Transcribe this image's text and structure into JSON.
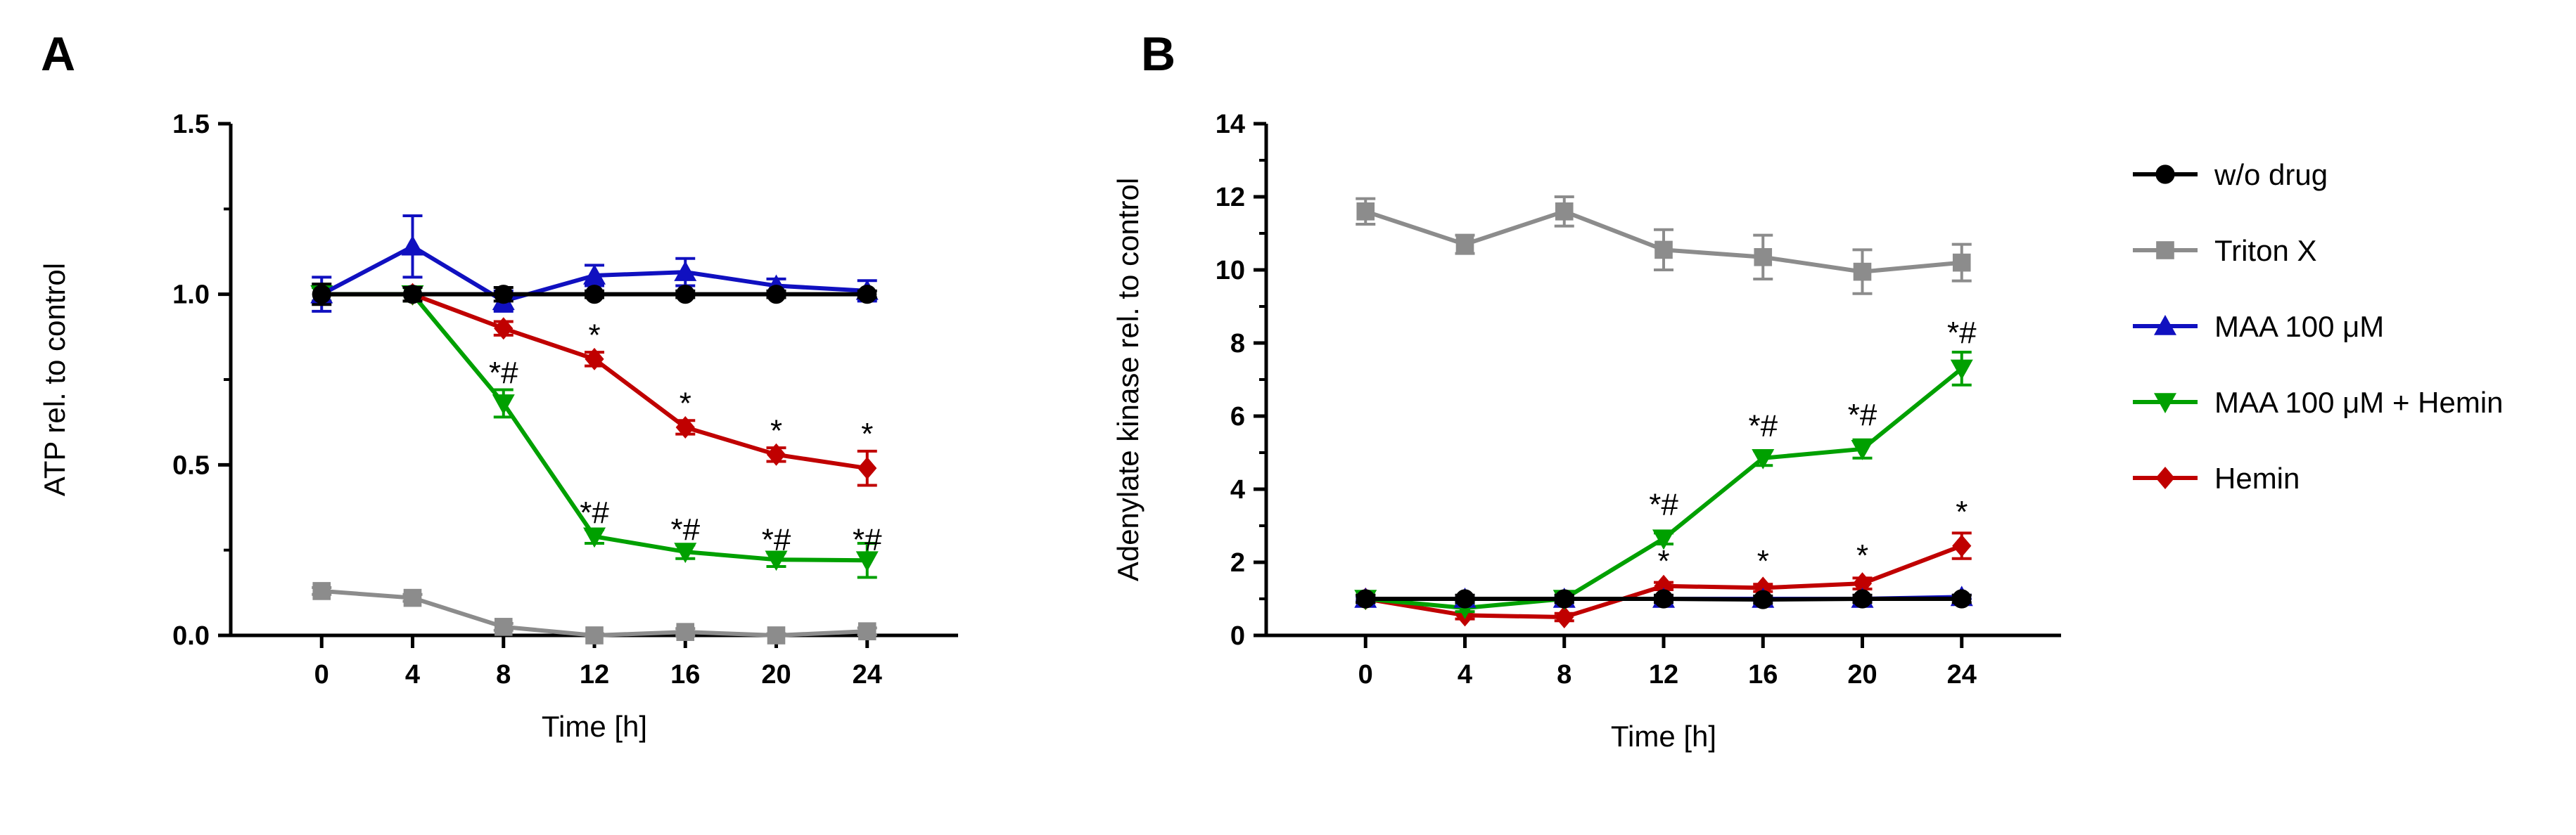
{
  "chart_data": [
    {
      "panel": "A",
      "type": "line",
      "title": "",
      "xlabel": "Time [h]",
      "ylabel": "ATP rel. to control",
      "x": [
        0,
        4,
        8,
        12,
        16,
        20,
        24
      ],
      "xticks": [
        "0",
        "4",
        "8",
        "12",
        "16",
        "20",
        "24"
      ],
      "ylim": [
        0,
        1.5
      ],
      "yticks": [
        "0.0",
        "0.5",
        "1.0",
        "1.5"
      ],
      "series": [
        {
          "name": "Triton X",
          "color": "#8c8c8c",
          "marker": "square",
          "values": [
            0.13,
            0.11,
            0.025,
            0.0,
            0.01,
            0.0,
            0.012
          ],
          "errors": [
            0.01,
            0.01,
            0.01,
            0.005,
            0.01,
            0.005,
            0.01
          ]
        },
        {
          "name": "Hemin",
          "color": "#c00000",
          "marker": "diamond",
          "values": [
            1.0,
            1.0,
            0.9,
            0.81,
            0.61,
            0.53,
            0.49
          ],
          "errors": [
            0.02,
            0.02,
            0.02,
            0.02,
            0.02,
            0.02,
            0.05
          ]
        },
        {
          "name": "MAA 100 μM + Hemin",
          "color": "#00a000",
          "marker": "triangle-down",
          "values": [
            1.0,
            1.0,
            0.68,
            0.29,
            0.245,
            0.222,
            0.22
          ],
          "errors": [
            0.02,
            0.02,
            0.04,
            0.02,
            0.02,
            0.02,
            0.05
          ]
        },
        {
          "name": "MAA 100 μM",
          "color": "#1010c0",
          "marker": "triangle-up",
          "values": [
            1.0,
            1.14,
            0.98,
            1.055,
            1.065,
            1.025,
            1.01
          ],
          "errors": [
            0.05,
            0.09,
            0.03,
            0.03,
            0.04,
            0.02,
            0.03
          ]
        },
        {
          "name": "w/o drug",
          "color": "#000000",
          "marker": "circle",
          "values": [
            1.0,
            1.0,
            1.0,
            1.0,
            1.0,
            1.0,
            1.0
          ],
          "errors": [
            0.03,
            0.02,
            0.02,
            0.01,
            0.01,
            0.01,
            0.01
          ]
        }
      ],
      "annotations": [
        {
          "x": 8,
          "y": 0.74,
          "text": "*#"
        },
        {
          "x": 12,
          "y": 0.85,
          "text": "*"
        },
        {
          "x": 12,
          "y": 0.33,
          "text": "*#"
        },
        {
          "x": 16,
          "y": 0.65,
          "text": "*"
        },
        {
          "x": 16,
          "y": 0.28,
          "text": "*#"
        },
        {
          "x": 20,
          "y": 0.57,
          "text": "*"
        },
        {
          "x": 20,
          "y": 0.25,
          "text": "*#"
        },
        {
          "x": 24,
          "y": 0.56,
          "text": "*"
        },
        {
          "x": 24,
          "y": 0.25,
          "text": "*#"
        }
      ]
    },
    {
      "panel": "B",
      "type": "line",
      "title": "",
      "xlabel": "Time [h]",
      "ylabel": "Adenylate kinase rel. to control",
      "x": [
        0,
        4,
        8,
        12,
        16,
        20,
        24
      ],
      "xticks": [
        "0",
        "4",
        "8",
        "12",
        "16",
        "20",
        "24"
      ],
      "ylim": [
        0,
        14
      ],
      "yticks": [
        "0",
        "2",
        "4",
        "6",
        "8",
        "10",
        "12",
        "14"
      ],
      "series": [
        {
          "name": "Triton X",
          "color": "#8c8c8c",
          "marker": "square",
          "values": [
            11.6,
            10.7,
            11.6,
            10.55,
            10.35,
            9.95,
            10.2
          ],
          "errors": [
            0.35,
            0.25,
            0.4,
            0.55,
            0.6,
            0.6,
            0.5
          ]
        },
        {
          "name": "Hemin",
          "color": "#c00000",
          "marker": "diamond",
          "values": [
            1.0,
            0.55,
            0.5,
            1.35,
            1.3,
            1.42,
            2.45
          ],
          "errors": [
            0.1,
            0.1,
            0.1,
            0.1,
            0.1,
            0.15,
            0.35
          ]
        },
        {
          "name": "MAA 100 μM + Hemin",
          "color": "#00a000",
          "marker": "triangle-down",
          "values": [
            1.0,
            0.75,
            1.0,
            2.65,
            4.85,
            5.1,
            7.3
          ],
          "errors": [
            0.1,
            0.1,
            0.1,
            0.15,
            0.2,
            0.25,
            0.45
          ]
        },
        {
          "name": "MAA 100 μM",
          "color": "#1010c0",
          "marker": "triangle-up",
          "values": [
            1.0,
            1.0,
            1.0,
            1.0,
            1.0,
            1.0,
            1.05
          ],
          "errors": [
            0.05,
            0.05,
            0.05,
            0.05,
            0.05,
            0.05,
            0.05
          ]
        },
        {
          "name": "w/o drug",
          "color": "#000000",
          "marker": "circle",
          "values": [
            1.0,
            1.0,
            1.0,
            1.0,
            0.98,
            1.0,
            1.0
          ],
          "errors": [
            0.1,
            0.1,
            0.1,
            0.1,
            0.1,
            0.1,
            0.1
          ]
        }
      ],
      "annotations": [
        {
          "x": 12,
          "y": 3.3,
          "text": "*#"
        },
        {
          "x": 12,
          "y": 1.75,
          "text": "*"
        },
        {
          "x": 16,
          "y": 5.45,
          "text": "*#"
        },
        {
          "x": 16,
          "y": 1.75,
          "text": "*"
        },
        {
          "x": 20,
          "y": 5.75,
          "text": "*#"
        },
        {
          "x": 20,
          "y": 1.9,
          "text": "*"
        },
        {
          "x": 24,
          "y": 8.0,
          "text": "*#"
        },
        {
          "x": 24,
          "y": 3.1,
          "text": "*"
        }
      ]
    }
  ],
  "legend": {
    "placement": "right",
    "entries": [
      {
        "label": "w/o drug",
        "color": "#000000",
        "marker": "circle"
      },
      {
        "label": "Triton X",
        "color": "#8c8c8c",
        "marker": "square"
      },
      {
        "label": "MAA 100 μM",
        "color": "#1010c0",
        "marker": "triangle-up"
      },
      {
        "label": "MAA 100 μM + Hemin",
        "color": "#00a000",
        "marker": "triangle-down"
      },
      {
        "label": "Hemin",
        "color": "#c00000",
        "marker": "diamond"
      }
    ]
  }
}
